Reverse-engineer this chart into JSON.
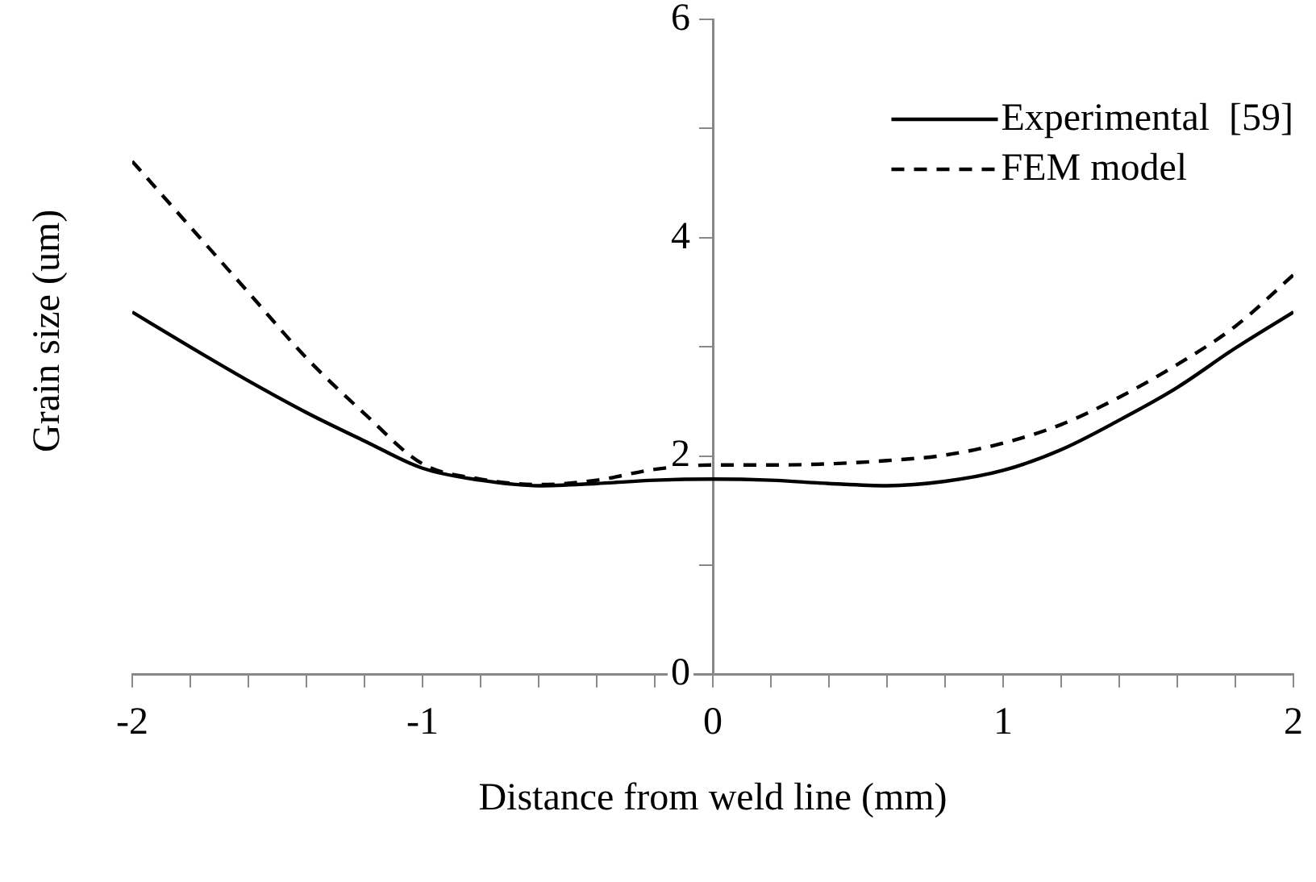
{
  "chart_data": {
    "type": "line",
    "xlabel": "Distance from weld line (mm)",
    "ylabel": "Grain size (um)",
    "x": [
      -2,
      -1.8,
      -1.6,
      -1.4,
      -1.2,
      -1,
      -0.8,
      -0.6,
      -0.4,
      -0.2,
      0,
      0.2,
      0.4,
      0.6,
      0.8,
      1,
      1.2,
      1.4,
      1.6,
      1.8,
      2
    ],
    "series": [
      {
        "name": "Experimental  [59]",
        "color": "#000000",
        "line_style": "solid",
        "values": [
          3.32,
          3.0,
          2.69,
          2.4,
          2.14,
          1.89,
          1.78,
          1.73,
          1.75,
          1.78,
          1.79,
          1.78,
          1.75,
          1.73,
          1.77,
          1.87,
          2.06,
          2.33,
          2.63,
          2.99,
          3.32
        ]
      },
      {
        "name": "FEM model",
        "color": "#000000",
        "line_style": "dashed",
        "values": [
          4.7,
          4.1,
          3.5,
          2.9,
          2.39,
          1.93,
          1.79,
          1.74,
          1.78,
          1.88,
          1.92,
          1.92,
          1.93,
          1.96,
          2.01,
          2.12,
          2.29,
          2.54,
          2.84,
          3.19,
          3.66
        ]
      }
    ],
    "xlim": [
      -2,
      2
    ],
    "xticks": [
      -2,
      {
        "value": -1.8,
        "label": null
      },
      {
        "value": -1.6,
        "label": null
      },
      {
        "value": -1.4,
        "label": null
      },
      {
        "value": -1.2,
        "label": null
      },
      -1,
      {
        "value": -0.8,
        "label": null
      },
      {
        "value": -0.6,
        "label": null
      },
      {
        "value": -0.4,
        "label": null
      },
      {
        "value": -0.2,
        "label": null
      },
      0,
      {
        "value": 0.2,
        "label": null
      },
      {
        "value": 0.4,
        "label": null
      },
      {
        "value": 0.6,
        "label": null
      },
      {
        "value": 0.8,
        "label": null
      },
      1,
      {
        "value": 1.2,
        "label": null
      },
      {
        "value": 1.4,
        "label": null
      },
      {
        "value": 1.6,
        "label": null
      },
      {
        "value": 1.8,
        "label": null
      },
      2
    ],
    "ylim": [
      0,
      6
    ],
    "yticks": [
      0,
      {
        "value": 1,
        "label": null
      },
      2,
      {
        "value": 3,
        "label": null
      },
      4,
      {
        "value": 5,
        "label": null
      },
      6
    ],
    "grid": false,
    "legend": "top right",
    "marker": "none"
  }
}
